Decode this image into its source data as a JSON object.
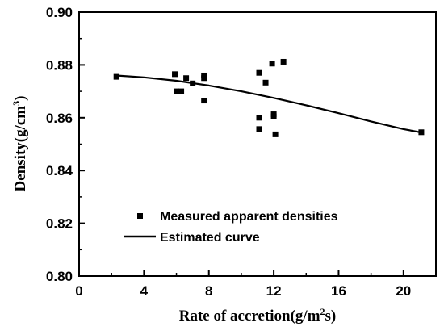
{
  "chart_data": {
    "type": "scatter",
    "xlabel_main": "Rate of accretion(g/m",
    "xlabel_sup": "2",
    "xlabel_end": "s)",
    "ylabel_main": "Density(g/cm",
    "ylabel_sup": "3",
    "ylabel_end": ")",
    "xlim": [
      0,
      22
    ],
    "ylim": [
      0.8,
      0.9
    ],
    "x_ticks": [
      0,
      4,
      8,
      12,
      16,
      20
    ],
    "x_tick_labels": [
      "0",
      "4",
      "8",
      "12",
      "16",
      "20"
    ],
    "y_ticks": [
      0.8,
      0.82,
      0.84,
      0.86,
      0.88,
      0.9
    ],
    "y_tick_labels": [
      "0.80",
      "0.82",
      "0.84",
      "0.86",
      "0.88",
      "0.90"
    ],
    "grid": false,
    "legend_position": "bottom-left",
    "series": [
      {
        "name": "Measured apparent densities",
        "kind": "scatter",
        "marker": "square",
        "color": "#000000",
        "x": [
          2.3,
          5.9,
          6.0,
          6.3,
          6.6,
          7.0,
          7.7,
          7.7,
          7.7,
          11.1,
          11.1,
          11.1,
          11.5,
          11.9,
          12.0,
          12.0,
          12.1,
          12.6,
          21.1
        ],
        "y": [
          0.8755,
          0.8765,
          0.87,
          0.87,
          0.875,
          0.873,
          0.876,
          0.875,
          0.8665,
          0.877,
          0.86,
          0.8557,
          0.8733,
          0.8805,
          0.8613,
          0.8605,
          0.8537,
          0.8812,
          0.8545
        ]
      },
      {
        "name": "Estimated curve",
        "kind": "line",
        "color": "#000000",
        "x": [
          2.3,
          4,
          6,
          8,
          10,
          12,
          14,
          16,
          18,
          20,
          21.1
        ],
        "y": [
          0.876,
          0.8753,
          0.874,
          0.8722,
          0.87,
          0.8675,
          0.8647,
          0.8617,
          0.8586,
          0.8557,
          0.8544
        ]
      }
    ]
  }
}
